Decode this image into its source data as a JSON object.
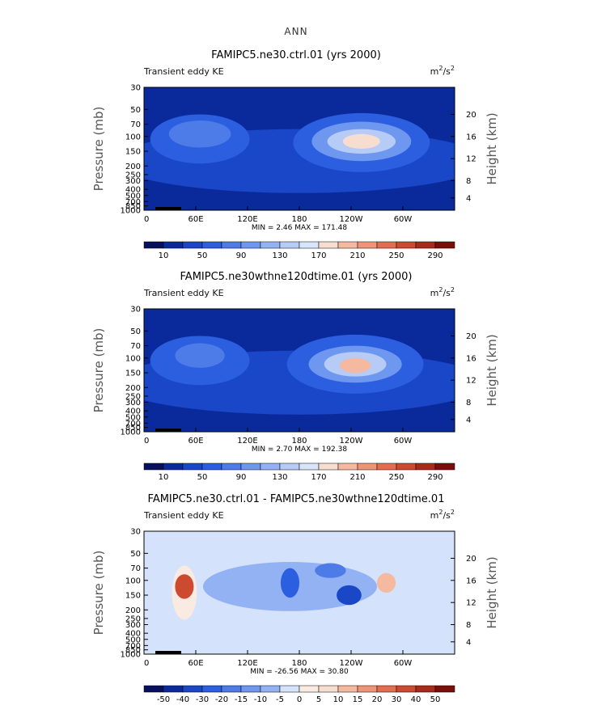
{
  "figure": {
    "suptitle": "ANN"
  },
  "chart_data": [
    {
      "type": "heatmap",
      "title": "FAMIPC5.ne30.ctrl.01 (yrs 2000)",
      "left_label": "Transient eddy KE",
      "units": "m²/s²",
      "units_base": "m",
      "units_sup1": "2",
      "units_mid": "/s",
      "units_sup2": "2",
      "xlabel": "",
      "ylabel": "Pressure (mb)",
      "ylabel_right": "Height (km)",
      "xticks": [
        "0",
        "60E",
        "120E",
        "180",
        "120W",
        "60W"
      ],
      "yticks": [
        "30",
        "50",
        "70",
        "100",
        "150",
        "200",
        "250",
        "300",
        "400",
        "500",
        "700",
        "850",
        "1000"
      ],
      "yticks_right": [
        "20",
        "16",
        "12",
        "8",
        "4"
      ],
      "min_label": "MIN =    2.46   MAX = 171.48",
      "min": 2.46,
      "max": 171.48,
      "colorbar_labels": [
        "10",
        "50",
        "90",
        "130",
        "170",
        "210",
        "250",
        "290"
      ],
      "colorbar_colors": [
        "#08105e",
        "#0a2a9c",
        "#1a46c8",
        "#2c5ee0",
        "#4d7be8",
        "#6e97ef",
        "#93b2f3",
        "#b6cbf6",
        "#d8e4fa",
        "#f6ddd0",
        "#f4b99f",
        "#ee9477",
        "#e26d4f",
        "#cc4a30",
        "#a82a1a",
        "#7a0f0a"
      ],
      "fields": [
        {
          "x": 0.5,
          "y": 0.88,
          "rx": 0.6,
          "ry": 0.14,
          "level": 1
        },
        {
          "x": 0.5,
          "y": 0.6,
          "rx": 0.6,
          "ry": 0.26,
          "level": 2
        },
        {
          "x": 0.18,
          "y": 0.42,
          "rx": 0.16,
          "ry": 0.2,
          "level": 3
        },
        {
          "x": 0.7,
          "y": 0.45,
          "rx": 0.22,
          "ry": 0.24,
          "level": 3
        },
        {
          "x": 0.18,
          "y": 0.38,
          "rx": 0.1,
          "ry": 0.11,
          "level": 4
        },
        {
          "x": 0.7,
          "y": 0.44,
          "rx": 0.16,
          "ry": 0.16,
          "level": 5
        },
        {
          "x": 0.7,
          "y": 0.44,
          "rx": 0.11,
          "ry": 0.1,
          "level": 7
        },
        {
          "x": 0.7,
          "y": 0.44,
          "rx": 0.06,
          "ry": 0.06,
          "level": 9
        }
      ]
    },
    {
      "type": "heatmap",
      "title": "FAMIPC5.ne30wthne120dtime.01 (yrs 2000)",
      "left_label": "Transient eddy KE",
      "units": "m²/s²",
      "units_base": "m",
      "units_sup1": "2",
      "units_mid": "/s",
      "units_sup2": "2",
      "xlabel": "",
      "ylabel": "Pressure (mb)",
      "ylabel_right": "Height (km)",
      "xticks": [
        "0",
        "60E",
        "120E",
        "180",
        "120W",
        "60W"
      ],
      "yticks": [
        "30",
        "50",
        "70",
        "100",
        "150",
        "200",
        "250",
        "300",
        "400",
        "500",
        "700",
        "850",
        "1000"
      ],
      "yticks_right": [
        "20",
        "16",
        "12",
        "8",
        "4"
      ],
      "min_label": "MIN =    2.70   MAX = 192.38",
      "min": 2.7,
      "max": 192.38,
      "colorbar_labels": [
        "10",
        "50",
        "90",
        "130",
        "170",
        "210",
        "250",
        "290"
      ],
      "colorbar_colors": [
        "#08105e",
        "#0a2a9c",
        "#1a46c8",
        "#2c5ee0",
        "#4d7be8",
        "#6e97ef",
        "#93b2f3",
        "#b6cbf6",
        "#d8e4fa",
        "#f6ddd0",
        "#f4b99f",
        "#ee9477",
        "#e26d4f",
        "#cc4a30",
        "#a82a1a",
        "#7a0f0a"
      ],
      "fields": [
        {
          "x": 0.5,
          "y": 0.88,
          "rx": 0.6,
          "ry": 0.14,
          "level": 1
        },
        {
          "x": 0.5,
          "y": 0.6,
          "rx": 0.6,
          "ry": 0.26,
          "level": 2
        },
        {
          "x": 0.18,
          "y": 0.42,
          "rx": 0.16,
          "ry": 0.2,
          "level": 3
        },
        {
          "x": 0.68,
          "y": 0.45,
          "rx": 0.22,
          "ry": 0.24,
          "level": 3
        },
        {
          "x": 0.18,
          "y": 0.38,
          "rx": 0.08,
          "ry": 0.1,
          "level": 4
        },
        {
          "x": 0.68,
          "y": 0.45,
          "rx": 0.15,
          "ry": 0.15,
          "level": 5
        },
        {
          "x": 0.68,
          "y": 0.45,
          "rx": 0.1,
          "ry": 0.1,
          "level": 7
        },
        {
          "x": 0.68,
          "y": 0.46,
          "rx": 0.05,
          "ry": 0.06,
          "level": 10
        }
      ]
    },
    {
      "type": "heatmap",
      "title": "FAMIPC5.ne30.ctrl.01 - FAMIPC5.ne30wthne120dtime.01",
      "left_label": "Transient eddy KE",
      "units": "m²/s²",
      "units_base": "m",
      "units_sup1": "2",
      "units_mid": "/s",
      "units_sup2": "2",
      "xlabel": "",
      "ylabel": "Pressure (mb)",
      "ylabel_right": "Height (km)",
      "xticks": [
        "0",
        "60E",
        "120E",
        "180",
        "120W",
        "60W"
      ],
      "yticks": [
        "30",
        "50",
        "70",
        "100",
        "150",
        "200",
        "250",
        "300",
        "400",
        "500",
        "700",
        "850",
        "1000"
      ],
      "yticks_right": [
        "20",
        "16",
        "12",
        "8",
        "4"
      ],
      "min_label": "MIN = -26.56   MAX =  30.80",
      "min": -26.56,
      "max": 30.8,
      "colorbar_labels": [
        "-50",
        "-40",
        "-30",
        "-20",
        "-15",
        "-10",
        "-5",
        "0",
        "5",
        "10",
        "15",
        "20",
        "30",
        "40",
        "50"
      ],
      "colorbar_colors": [
        "#08105e",
        "#0a2a9c",
        "#1a46c8",
        "#2c5ee0",
        "#4d7be8",
        "#6e97ef",
        "#93b2f3",
        "#d4e3fb",
        "#faebe2",
        "#f6ddd0",
        "#f4b99f",
        "#ee9477",
        "#e26d4f",
        "#cc4a30",
        "#a82a1a",
        "#7a0f0a"
      ],
      "fields": [
        {
          "x": 0.5,
          "y": 0.5,
          "rx": 0.7,
          "ry": 0.7,
          "level": 7
        },
        {
          "x": 0.13,
          "y": 0.5,
          "rx": 0.04,
          "ry": 0.22,
          "level": 8
        },
        {
          "x": 0.13,
          "y": 0.45,
          "rx": 0.03,
          "ry": 0.1,
          "level": 13
        },
        {
          "x": 0.47,
          "y": 0.45,
          "rx": 0.28,
          "ry": 0.2,
          "level": 6
        },
        {
          "x": 0.47,
          "y": 0.42,
          "rx": 0.03,
          "ry": 0.12,
          "level": 3
        },
        {
          "x": 0.66,
          "y": 0.52,
          "rx": 0.04,
          "ry": 0.08,
          "level": 2
        },
        {
          "x": 0.78,
          "y": 0.42,
          "rx": 0.03,
          "ry": 0.08,
          "level": 10
        },
        {
          "x": 0.6,
          "y": 0.32,
          "rx": 0.05,
          "ry": 0.06,
          "level": 4
        }
      ]
    }
  ]
}
